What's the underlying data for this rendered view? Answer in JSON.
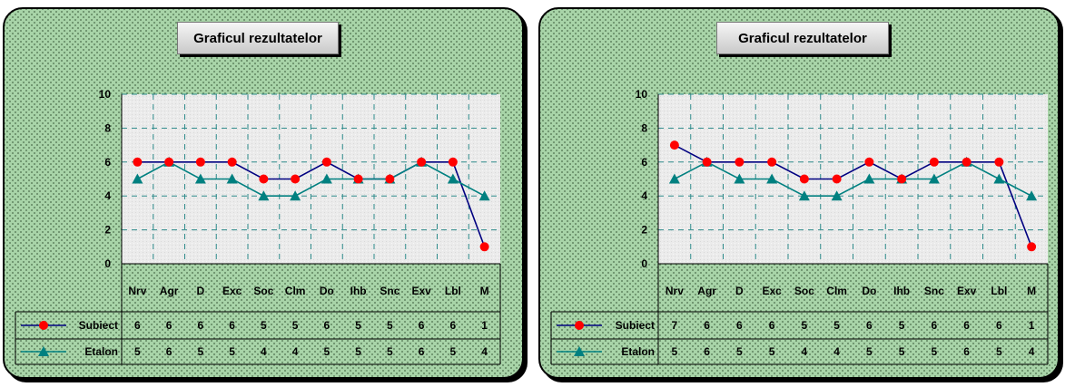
{
  "chart_data": [
    {
      "type": "line",
      "title": "Graficul rezultatelor",
      "categories": [
        "Nrv",
        "Agr",
        "D",
        "Exc",
        "Soc",
        "Clm",
        "Do",
        "Ihb",
        "Snc",
        "Exv",
        "Lbl",
        "M"
      ],
      "yticks": [
        "0",
        "2",
        "4",
        "6",
        "8",
        "10"
      ],
      "ylim": [
        0,
        10
      ],
      "grid": true,
      "legend": "bottom-left data table",
      "series": [
        {
          "name": "Subiect",
          "color": "#000080",
          "marker": "circle",
          "marker_color": "#ff0000",
          "values": [
            6,
            6,
            6,
            6,
            5,
            5,
            6,
            5,
            5,
            6,
            6,
            1
          ],
          "labels": [
            "6",
            "6",
            "6",
            "6",
            "5",
            "5",
            "6",
            "5",
            "5",
            "6",
            "6",
            "1"
          ]
        },
        {
          "name": "Etalon",
          "color": "#008080",
          "marker": "triangle",
          "marker_color": "#008080",
          "values": [
            5,
            6,
            5,
            5,
            4,
            4,
            5,
            5,
            5,
            6,
            5,
            4
          ],
          "labels": [
            "5",
            "6",
            "5",
            "5",
            "4",
            "4",
            "5",
            "5",
            "5",
            "6",
            "5",
            "4"
          ]
        }
      ]
    },
    {
      "type": "line",
      "title": "Graficul rezultatelor",
      "categories": [
        "Nrv",
        "Agr",
        "D",
        "Exc",
        "Soc",
        "Clm",
        "Do",
        "Ihb",
        "Snc",
        "Exv",
        "Lbl",
        "M"
      ],
      "yticks": [
        "0",
        "2",
        "4",
        "6",
        "8",
        "10"
      ],
      "ylim": [
        0,
        10
      ],
      "grid": true,
      "legend": "bottom-left data table",
      "series": [
        {
          "name": "Subiect",
          "color": "#000080",
          "marker": "circle",
          "marker_color": "#ff0000",
          "values": [
            7,
            6,
            6,
            6,
            5,
            5,
            6,
            5,
            6,
            6,
            6,
            1
          ],
          "labels": [
            "7",
            "6",
            "6",
            "6",
            "5",
            "5",
            "6",
            "5",
            "6",
            "6",
            "6",
            "1"
          ]
        },
        {
          "name": "Etalon",
          "color": "#008080",
          "marker": "triangle",
          "marker_color": "#008080",
          "values": [
            5,
            6,
            5,
            5,
            4,
            4,
            5,
            5,
            5,
            6,
            5,
            4
          ],
          "labels": [
            "5",
            "6",
            "5",
            "5",
            "4",
            "4",
            "5",
            "5",
            "5",
            "6",
            "5",
            "4"
          ]
        }
      ]
    }
  ]
}
